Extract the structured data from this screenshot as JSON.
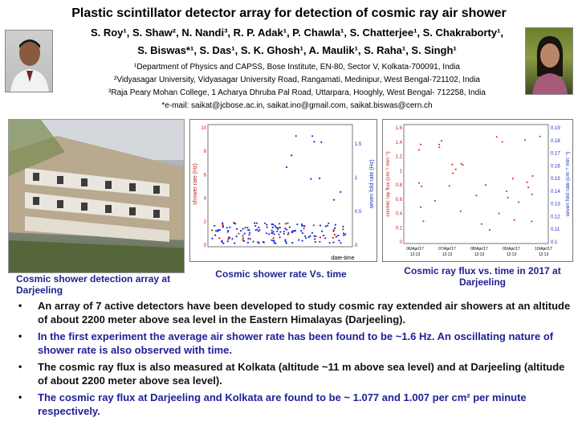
{
  "header": {
    "title": "Plastic scintillator detector array for detection of cosmic ray air shower",
    "authors_line1": "S. Roy¹, S. Shaw², N. Nandi³, R. P. Adak¹, P. Chawla¹, S. Chatterjee¹, S. Chakraborty¹,",
    "authors_line2": "S. Biswas*¹, S. Das¹, S. K. Ghosh¹, A. Maulik¹, S. Raha¹, S. Singh¹",
    "affil1": "¹Department of Physics and CAPSS, Bose Institute, EN-80, Sector V, Kolkata-700091, India",
    "affil2": "²Vidyasagar University, Vidyasagar University Road, Rangamati, Medinipur, West Bengal-721102, India",
    "affil3": "³Raja Peary Mohan College, 1 Acharya Dhruba Pal Road, Uttarpara, Hooghly, West Bengal- 712258, India",
    "email": "*e-mail: saikat@jcbose.ac.in, saikat.ino@gmail.com, saikat.biswas@cern.ch"
  },
  "figures": {
    "building_caption": "Cosmic shower detection array at Darjeeling",
    "rate_caption": "Cosmic shower rate Vs. time",
    "flux_caption": "Cosmic ray flux vs. time in 2017 at Darjeeling",
    "rate_plot": {
      "ylabel_left": "shower rate (Hz)",
      "ylabel_right": "seven fold rate (Hz)",
      "xlabel": "date-time",
      "left_ticks": [
        "10",
        "8",
        "6",
        "4",
        "2",
        "0"
      ],
      "right_ticks": [
        "1.5",
        "1",
        "0.5",
        "0"
      ]
    },
    "flux_plot": {
      "ylabel_left": "cosmic ray flux (cm⁻² min⁻¹)",
      "ylabel_right": "seven fold rate (cm⁻² min⁻¹)",
      "left_ticks": [
        "1.6",
        "1.4",
        "1.2",
        "1",
        "0.8",
        "0.6",
        "0.4",
        "0.2",
        "0"
      ],
      "right_ticks": [
        "0.19",
        "0.18",
        "0.17",
        "0.16",
        "0.15",
        "0.14",
        "0.13",
        "0.12",
        "0.11",
        "0.1"
      ],
      "x_ticks": [
        "06/Apr/17 12:13",
        "07/Apr/17 12:13",
        "08/Apr/17 12:13",
        "09/Apr/17 12:13",
        "10/Apr/17 12:13"
      ]
    }
  },
  "bullets": [
    "An array of 7 active detectors have been developed to study cosmic ray extended air showers at an altitude of about 2200 meter above sea level in the Eastern Himalayas (Darjeeling).",
    "In the first experiment the average air shower rate has been found to be ~1.6 Hz. An oscillating nature of shower rate is also observed with time.",
    "The cosmic ray flux is also measured at Kolkata (altitude ~11 m above sea level) and at Darjeeling (altitude of about 2200 meter above sea level).",
    "The cosmic ray flux at Darjeeling and Kolkata are found to be ~ 1.077 and 1.007 per cm² per minute respectively."
  ],
  "bullet_symbol": "•",
  "colors": {
    "caption": "#1f1f8f",
    "bullet_blue": "#20209a",
    "rate_points": "#1a2fd0",
    "flux_points_red": "#d01a1a"
  }
}
